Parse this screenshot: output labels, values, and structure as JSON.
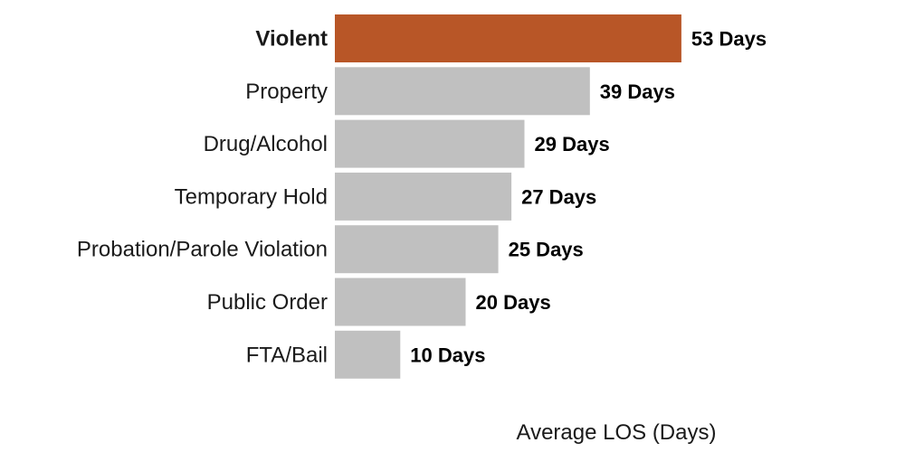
{
  "chart_data": {
    "type": "bar",
    "orientation": "horizontal",
    "categories": [
      "Violent",
      "Property",
      "Drug/Alcohol",
      "Temporary Hold",
      "Probation/Parole Violation",
      "Public Order",
      "FTA/Bail"
    ],
    "values": [
      53,
      39,
      29,
      27,
      25,
      20,
      10
    ],
    "value_labels": [
      "53 Days",
      "39 Days",
      "29 Days",
      "27 Days",
      "25 Days",
      "20 Days",
      "10 Days"
    ],
    "highlight_index": 0,
    "xlabel": "Average LOS (Days)",
    "ylabel": "",
    "title": "",
    "xlim": [
      0,
      80
    ],
    "grid": false,
    "legend": "none",
    "colors": {
      "highlight": "#b85627",
      "default": "#c0c0c0",
      "text": "#1a1a1a",
      "value_text": "#000000"
    }
  }
}
